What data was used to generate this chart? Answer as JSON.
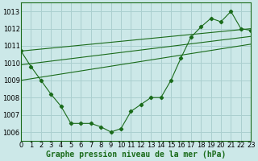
{
  "xlabel": "Graphe pression niveau de la mer (hPa)",
  "bg_color": "#cce8e8",
  "grid_color": "#aacfcf",
  "line_color": "#1a6b1a",
  "x_min": 0,
  "x_max": 23,
  "y_min": 1005.5,
  "y_max": 1013.5,
  "yticks": [
    1006,
    1007,
    1008,
    1009,
    1010,
    1011,
    1012,
    1013
  ],
  "xticks": [
    0,
    1,
    2,
    3,
    4,
    5,
    6,
    7,
    8,
    9,
    10,
    11,
    12,
    13,
    14,
    15,
    16,
    17,
    18,
    19,
    20,
    21,
    22,
    23
  ],
  "series1_x": [
    0,
    1,
    2,
    3,
    4,
    5,
    6,
    7,
    8,
    9,
    10,
    11,
    12,
    13,
    14,
    15,
    16,
    17,
    18,
    19,
    20,
    21,
    22,
    23
  ],
  "series1_y": [
    1010.7,
    1009.8,
    1009.0,
    1008.2,
    1007.5,
    1006.5,
    1006.5,
    1006.5,
    1006.3,
    1006.0,
    1006.2,
    1007.2,
    1007.6,
    1008.0,
    1008.0,
    1009.0,
    1010.3,
    1011.5,
    1012.1,
    1012.6,
    1012.4,
    1013.0,
    1012.0,
    1011.9
  ],
  "trend_line1": [
    [
      0,
      1010.7
    ],
    [
      23,
      1012.0
    ]
  ],
  "trend_line2": [
    [
      0,
      1009.9
    ],
    [
      23,
      1011.55
    ]
  ],
  "trend_line3": [
    [
      0,
      1009.0
    ],
    [
      23,
      1011.1
    ]
  ],
  "font_size_label": 7.0,
  "tick_font_size": 6.0
}
